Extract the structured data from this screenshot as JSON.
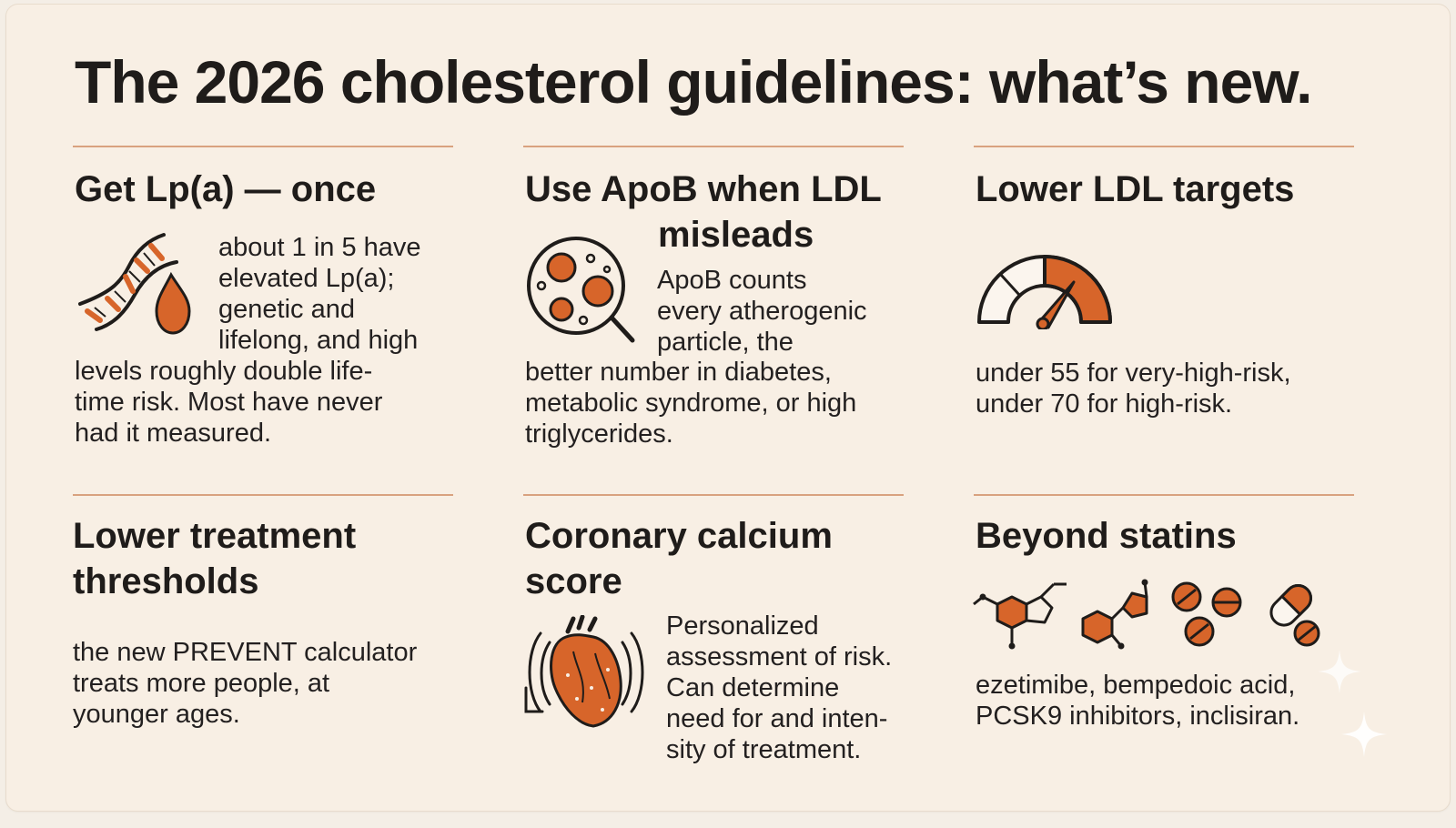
{
  "title": "The 2026 cholesterol guidelines: what’s new.",
  "colors": {
    "accent": "#d7652a",
    "rule": "#d9a27f",
    "ink": "#1f1c1a",
    "background": "#f8efe4"
  },
  "panels": [
    {
      "heading": [
        "Get Lp(a) — once"
      ],
      "icon": "dna-and-blood-drop-icon",
      "body": [
        "about 1 in 5 have",
        "elevated Lp(a);",
        "genetic and",
        "lifelong, and high",
        "levels roughly double life-",
        "time risk. Most have never",
        "had it measured."
      ]
    },
    {
      "heading": [
        "Use ApoB when LDL",
        "misleads"
      ],
      "icon": "particles-magnifier-icon",
      "body": [
        "ApoB counts",
        "every atherogenic",
        "particle, the",
        "better number in diabetes,",
        "metabolic syndrome, or high",
        "triglycerides."
      ]
    },
    {
      "heading": [
        "Lower LDL targets"
      ],
      "icon": "gauge-icon",
      "body": [
        "under 55 for very-high-risk,",
        "under 70 for high-risk."
      ]
    },
    {
      "heading": [
        "Lower treatment",
        "thresholds"
      ],
      "icon": "",
      "body": [
        "the new PREVENT calculator",
        "treats more people, at",
        "younger ages."
      ]
    },
    {
      "heading": [
        "Coronary calcium",
        "score"
      ],
      "icon": "heart-scan-icon",
      "body": [
        "Personalized",
        "assessment of risk.",
        "Can determine",
        "need for and inten-",
        "sity of treatment."
      ]
    },
    {
      "heading": [
        "Beyond statins"
      ],
      "icon": "molecules-and-pills-icon",
      "body": [
        "ezetimibe, bempedoic acid,",
        "PCSK9 inhibitors, inclisiran."
      ]
    }
  ]
}
